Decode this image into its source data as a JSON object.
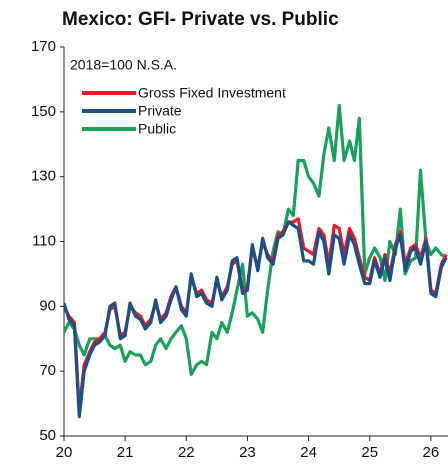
{
  "chart_data": {
    "type": "line",
    "title": "Mexico: GFI- Private vs. Public",
    "annotation": "2018=100 N.S.A.",
    "x": [
      20,
      20.08,
      20.17,
      20.25,
      20.33,
      20.42,
      20.5,
      20.58,
      20.67,
      20.75,
      20.83,
      20.92,
      21,
      21.08,
      21.17,
      21.25,
      21.33,
      21.42,
      21.5,
      21.58,
      21.67,
      21.75,
      21.83,
      21.92,
      22,
      22.08,
      22.17,
      22.25,
      22.33,
      22.42,
      22.5,
      22.58,
      22.67,
      22.75,
      22.83,
      22.92,
      23,
      23.08,
      23.17,
      23.25,
      23.33,
      23.42,
      23.5,
      23.58,
      23.67,
      23.75,
      23.83,
      23.92,
      24,
      24.08,
      24.17,
      24.25,
      24.33,
      24.42,
      24.5,
      24.58,
      24.67,
      24.75,
      24.83,
      24.92,
      25,
      25.08,
      25.17,
      25.25,
      25.33,
      25.42,
      25.5,
      25.58,
      25.67,
      25.75,
      25.83,
      25.92,
      26,
      26.08,
      26.17,
      26.25
    ],
    "series": [
      {
        "name": "Gross Fixed Investment",
        "color": "#e31b23",
        "values": [
          90,
          87,
          85,
          58,
          72,
          76,
          79,
          80,
          82,
          89,
          90,
          81,
          82,
          90,
          88,
          87,
          84,
          86,
          91,
          86,
          88,
          93,
          96,
          90,
          88,
          99,
          94,
          95,
          92,
          91,
          98,
          93,
          96,
          103,
          104,
          95,
          96,
          108,
          102,
          110,
          106,
          104,
          112,
          113,
          116,
          116,
          117,
          108,
          107,
          106,
          114,
          112,
          103,
          115,
          114,
          106,
          114,
          111,
          105,
          99,
          98,
          105,
          100,
          106,
          100,
          109,
          113,
          103,
          108,
          109,
          105,
          111,
          95,
          94,
          103,
          106
        ]
      },
      {
        "name": "Private",
        "color": "#1b4f8a",
        "values": [
          91,
          86,
          84,
          56,
          70,
          75,
          78,
          79,
          81,
          90,
          91,
          80,
          81,
          91,
          87,
          86,
          83,
          85,
          92,
          85,
          87,
          92,
          96,
          89,
          87,
          100,
          93,
          94,
          91,
          90,
          99,
          92,
          95,
          104,
          105,
          94,
          95,
          109,
          101,
          111,
          105,
          103,
          111,
          112,
          116,
          115,
          114,
          104,
          104,
          103,
          113,
          110,
          100,
          112,
          111,
          103,
          112,
          109,
          103,
          97,
          97,
          104,
          99,
          105,
          98,
          108,
          112,
          101,
          107,
          108,
          103,
          110,
          94,
          93,
          102,
          105
        ]
      },
      {
        "name": "Public",
        "color": "#1aa05a",
        "values": [
          82,
          85,
          83,
          78,
          75,
          80,
          80,
          80,
          81,
          78,
          77,
          78,
          73,
          76,
          75,
          75,
          72,
          73,
          78,
          80,
          77,
          80,
          82,
          84,
          80,
          69,
          72,
          73,
          72,
          82,
          80,
          85,
          82,
          88,
          95,
          103,
          87,
          88,
          86,
          82,
          95,
          107,
          113,
          112,
          120,
          118,
          135,
          135,
          130,
          128,
          124,
          137,
          145,
          135,
          152,
          135,
          141,
          135,
          148,
          100,
          105,
          108,
          105,
          98,
          110,
          106,
          120,
          100,
          104,
          105,
          132,
          110,
          106,
          108,
          106,
          105
        ]
      }
    ],
    "xlim": [
      20,
      26.28
    ],
    "xticks": [
      20,
      21,
      22,
      23,
      24,
      25,
      26
    ],
    "ylim": [
      50,
      170
    ],
    "yticks": [
      50,
      70,
      90,
      110,
      130,
      150,
      170
    ],
    "legend": "upper left",
    "grid": false
  }
}
